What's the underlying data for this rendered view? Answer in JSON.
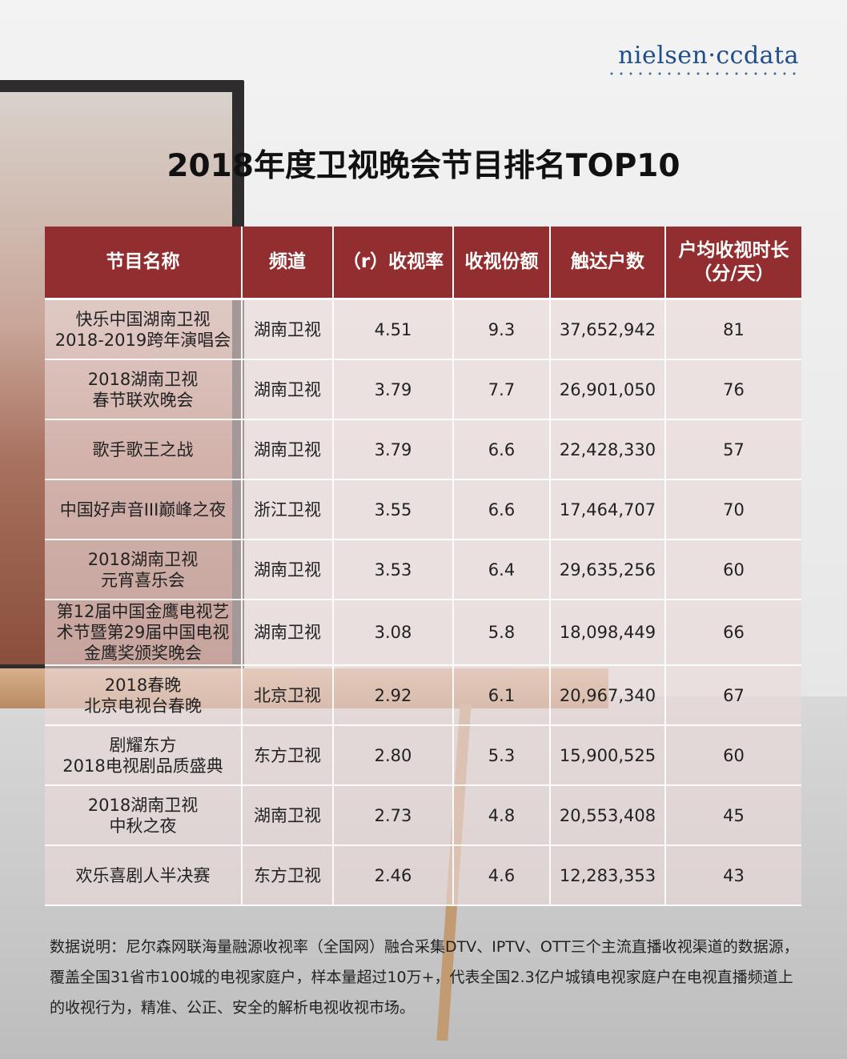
{
  "brand": {
    "logo_text": "nielsen·ccdata"
  },
  "title": "2018年度卫视晚会节目排名TOP10",
  "table": {
    "headers": [
      "节目名称",
      "频道",
      "（r）收视率",
      "收视份额",
      "触达户数",
      "户均收视时长\n（分/天）"
    ],
    "rows": [
      [
        "快乐中国湖南卫视\n2018-2019跨年演唱会",
        "湖南卫视",
        "4.51",
        "9.3",
        "37,652,942",
        "81"
      ],
      [
        "2018湖南卫视\n春节联欢晚会",
        "湖南卫视",
        "3.79",
        "7.7",
        "26,901,050",
        "76"
      ],
      [
        "歌手歌王之战",
        "湖南卫视",
        "3.79",
        "6.6",
        "22,428,330",
        "57"
      ],
      [
        "中国好声音III巅峰之夜",
        "浙江卫视",
        "3.55",
        "6.6",
        "17,464,707",
        "70"
      ],
      [
        "2018湖南卫视\n元宵喜乐会",
        "湖南卫视",
        "3.53",
        "6.4",
        "29,635,256",
        "60"
      ],
      [
        "第12届中国金鹰电视艺\n术节暨第29届中国电视\n金鹰奖颁奖晚会",
        "湖南卫视",
        "3.08",
        "5.8",
        "18,098,449",
        "66"
      ],
      [
        "2018春晚\n北京电视台春晚",
        "北京卫视",
        "2.92",
        "6.1",
        "20,967,340",
        "67"
      ],
      [
        "剧耀东方\n2018电视剧品质盛典",
        "东方卫视",
        "2.80",
        "5.3",
        "15,900,525",
        "60"
      ],
      [
        "2018湖南卫视\n中秋之夜",
        "湖南卫视",
        "2.73",
        "4.8",
        "20,553,408",
        "45"
      ],
      [
        "欢乐喜剧人半决赛",
        "东方卫视",
        "2.46",
        "4.6",
        "12,283,353",
        "43"
      ]
    ]
  },
  "note": "数据说明：尼尔森网联海量融源收视率（全国网）融合采集DTV、IPTV、OTT三个主流直播收视渠道的数据源，覆盖全国31省市100城的电视家庭户，样本量超过10万+，代表全国2.3亿户城镇电视家庭户在电视直播频道上的收视行为，精准、公正、安全的解析电视收视市场。"
}
